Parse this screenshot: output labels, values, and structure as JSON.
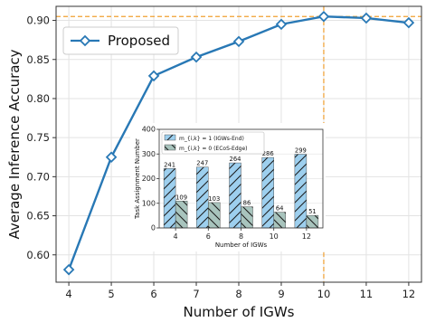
{
  "chart_data": [
    {
      "type": "line",
      "xlabel": "Number of IGWs",
      "ylabel": "Average Inference Accuracy",
      "x": [
        4,
        5,
        6,
        7,
        8,
        9,
        10,
        11,
        12
      ],
      "series": [
        {
          "name": "Proposed",
          "values": [
            0.581,
            0.725,
            0.829,
            0.853,
            0.873,
            0.895,
            0.905,
            0.903,
            0.897
          ]
        }
      ],
      "xlim": [
        3.7,
        12.3
      ],
      "ylim": [
        0.565,
        0.918
      ],
      "xticks": [
        "4",
        "5",
        "6",
        "7",
        "8",
        "9",
        "10",
        "11",
        "12"
      ],
      "yticks": [
        "0.60",
        "0.65",
        "0.70",
        "0.75",
        "0.80",
        "0.85",
        "0.90"
      ],
      "reference_lines": {
        "x": 10,
        "y": 0.905
      },
      "grid": true,
      "legend_position": "top-left",
      "colors": {
        "line": "#2878b5",
        "reference": "#f0a030"
      }
    },
    {
      "type": "bar",
      "xlabel": "Number of IGWs",
      "ylabel": "Task Assignment Number",
      "categories": [
        "4",
        "6",
        "8",
        "10",
        "12"
      ],
      "series": [
        {
          "name": "m_{i,k} = 1 (IGWs-End)",
          "values": [
            241,
            247,
            264,
            286,
            299
          ]
        },
        {
          "name": "m_{i,k} = 0 (ECoS-Edge)",
          "values": [
            109,
            103,
            86,
            64,
            51
          ]
        }
      ],
      "ylim": [
        0,
        400
      ],
      "yticks": [
        "0",
        "100",
        "200",
        "300",
        "400"
      ],
      "legend_position": "top-left",
      "colors": [
        "#9dcfee",
        "#a8c4bd"
      ]
    }
  ]
}
